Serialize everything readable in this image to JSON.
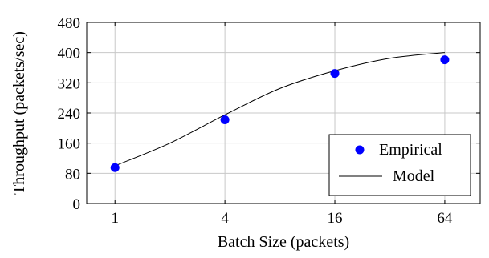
{
  "chart_data": {
    "type": "scatter",
    "title": "",
    "xlabel": "Batch Size (packets)",
    "ylabel": "Throughput (packets/sec)",
    "x_scale": "log2",
    "x_ticks": [
      1,
      4,
      16,
      64
    ],
    "x_tick_labels": [
      "1",
      "4",
      "16",
      "64"
    ],
    "xlim": [
      0.7,
      100
    ],
    "ylim": [
      0,
      480
    ],
    "y_ticks": [
      0,
      80,
      160,
      240,
      320,
      400,
      480
    ],
    "y_tick_labels": [
      "0",
      "80",
      "160",
      "240",
      "320",
      "400",
      "480"
    ],
    "grid": true,
    "legend_position": "bottom-right",
    "series": [
      {
        "name": "Empirical",
        "kind": "scatter",
        "color": "#0000ff",
        "x": [
          1,
          4,
          16,
          64
        ],
        "y": [
          95,
          222,
          345,
          381
        ]
      },
      {
        "name": "Model",
        "kind": "line",
        "color": "#000000",
        "x": [
          1,
          2,
          4,
          8,
          16,
          32,
          64
        ],
        "y": [
          100,
          160,
          235,
          305,
          352,
          385,
          400
        ]
      }
    ]
  }
}
